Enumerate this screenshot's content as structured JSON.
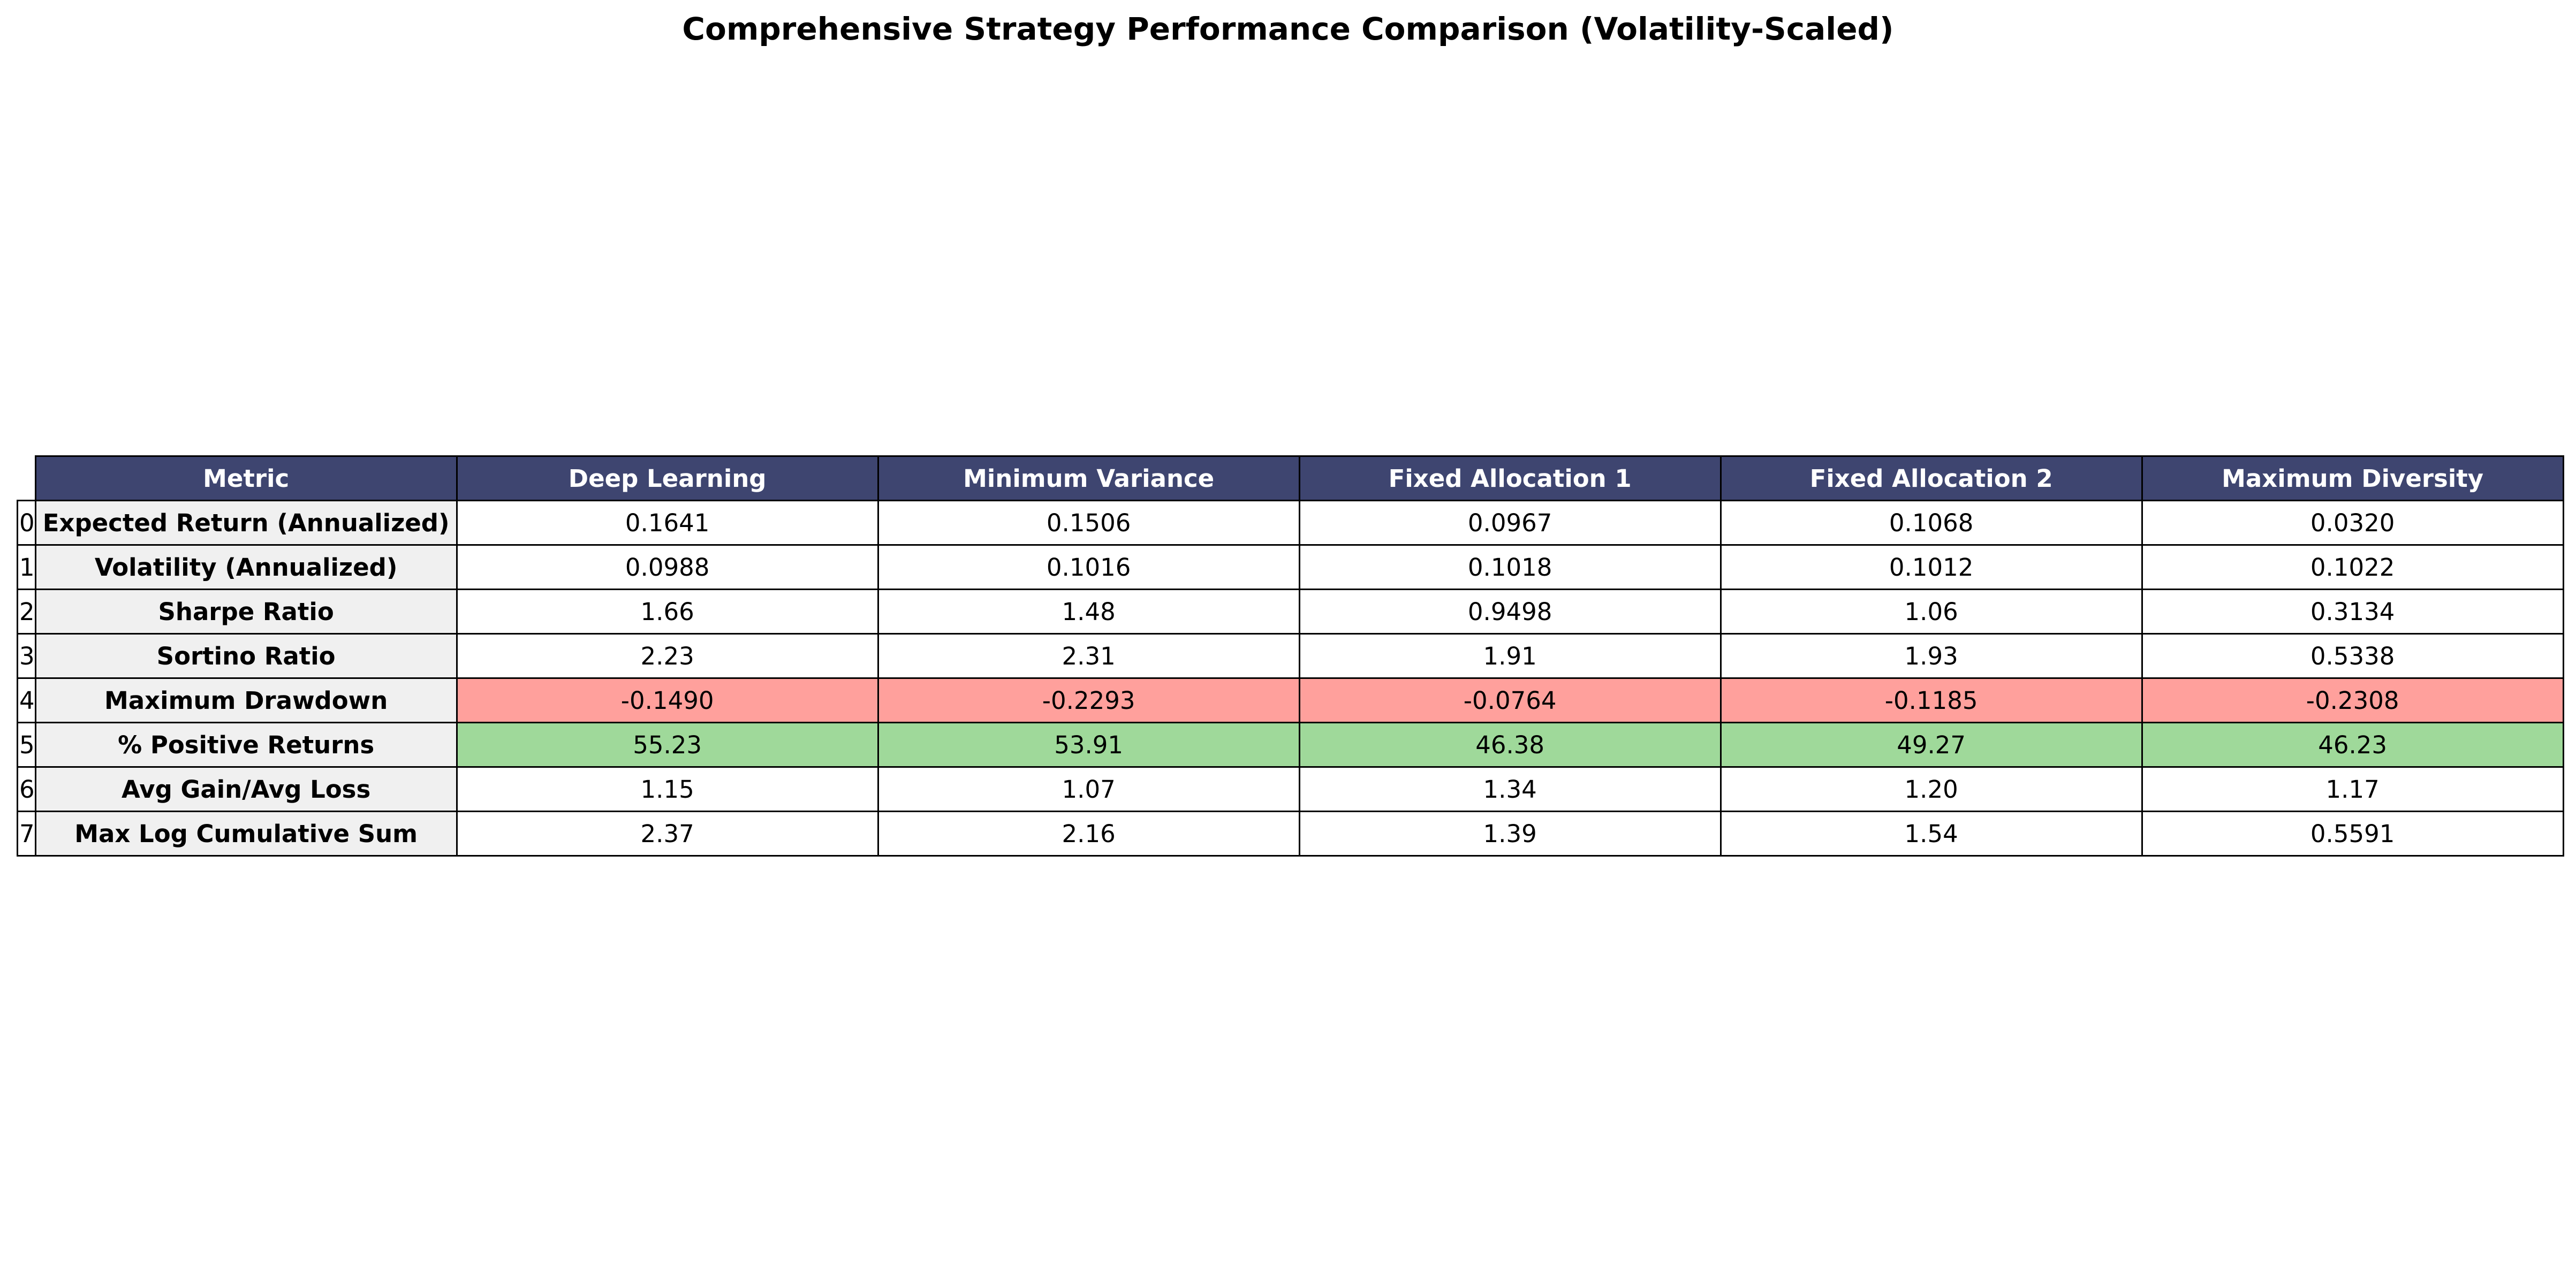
{
  "chart_data": {
    "type": "table",
    "title": "Comprehensive Strategy Performance Comparison (Volatility-Scaled)",
    "columns": [
      "Metric",
      "Deep Learning",
      "Minimum Variance",
      "Fixed Allocation 1",
      "Fixed Allocation 2",
      "Maximum Diversity"
    ],
    "rows": [
      {
        "index": "0",
        "metric": "Expected Return (Annualized)",
        "values": [
          "0.1641",
          "0.1506",
          "0.0967",
          "0.1068",
          "0.0320"
        ],
        "highlight": "none"
      },
      {
        "index": "1",
        "metric": "Volatility (Annualized)",
        "values": [
          "0.0988",
          "0.1016",
          "0.1018",
          "0.1012",
          "0.1022"
        ],
        "highlight": "none"
      },
      {
        "index": "2",
        "metric": "Sharpe Ratio",
        "values": [
          "1.66",
          "1.48",
          "0.9498",
          "1.06",
          "0.3134"
        ],
        "highlight": "none"
      },
      {
        "index": "3",
        "metric": "Sortino Ratio",
        "values": [
          "2.23",
          "2.31",
          "1.91",
          "1.93",
          "0.5338"
        ],
        "highlight": "none"
      },
      {
        "index": "4",
        "metric": "Maximum Drawdown",
        "values": [
          "-0.1490",
          "-0.2293",
          "-0.0764",
          "-0.1185",
          "-0.2308"
        ],
        "highlight": "red"
      },
      {
        "index": "5",
        "metric": "% Positive Returns",
        "values": [
          "55.23",
          "53.91",
          "46.38",
          "49.27",
          "46.23"
        ],
        "highlight": "green"
      },
      {
        "index": "6",
        "metric": "Avg Gain/Avg Loss",
        "values": [
          "1.15",
          "1.07",
          "1.34",
          "1.20",
          "1.17"
        ],
        "highlight": "none"
      },
      {
        "index": "7",
        "metric": "Max Log Cumulative Sum",
        "values": [
          "2.37",
          "2.16",
          "1.39",
          "1.54",
          "0.5591"
        ],
        "highlight": "none"
      }
    ],
    "colors": {
      "header_bg": "#3e4570",
      "header_text": "#ffffff",
      "metric_bg": "#f0f0f0",
      "negative_highlight": "#ffa09c",
      "positive_highlight": "#9fd99a"
    }
  }
}
